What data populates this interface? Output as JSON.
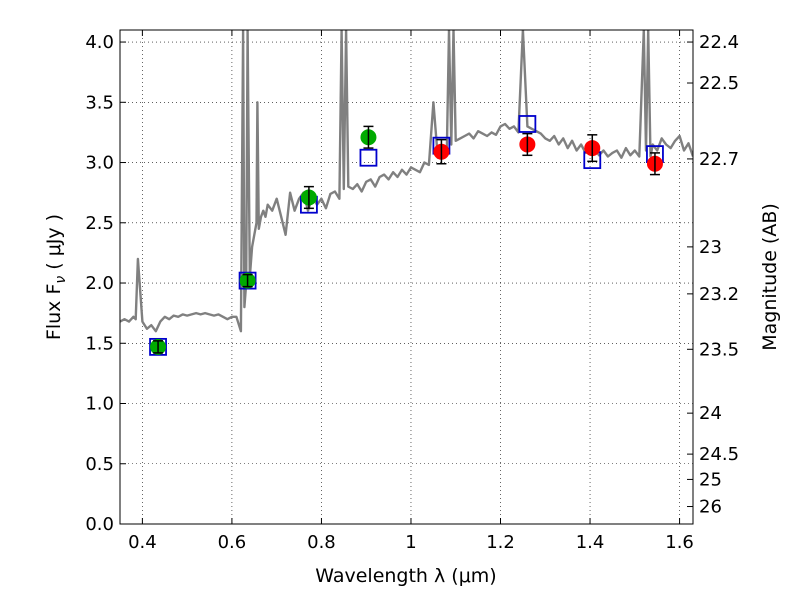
{
  "chart_data": {
    "type": "scatter",
    "xlabel": "Wavelength  λ (μm)",
    "ylabel": "Flux  F",
    "ylabel_sub": "ν",
    "ylabel_units": "  ( μJy )",
    "y2label": "Magnitude (AB)",
    "xlim": [
      0.35,
      1.63
    ],
    "ylim": [
      0.0,
      4.1
    ],
    "grid": true,
    "x_ticks": [
      0.4,
      0.6,
      0.8,
      1.0,
      1.2,
      1.4,
      1.6
    ],
    "x_tick_labels": [
      "0.4",
      "0.6",
      "0.8",
      "1",
      "1.2",
      "1.4",
      "1.6"
    ],
    "y_ticks": [
      0.0,
      0.5,
      1.0,
      1.5,
      2.0,
      2.5,
      3.0,
      3.5,
      4.0
    ],
    "y_tick_labels": [
      "0.0",
      "0.5",
      "1.0",
      "1.5",
      "2.0",
      "2.5",
      "3.0",
      "3.5",
      "4.0"
    ],
    "mag_ticks": [
      {
        "label": "22.4",
        "flux": 4.0
      },
      {
        "label": "22.5",
        "flux": 3.66
      },
      {
        "label": "22.7",
        "flux": 3.03
      },
      {
        "label": "23",
        "flux": 2.3
      },
      {
        "label": "23.2",
        "flux": 1.91
      },
      {
        "label": "23.5",
        "flux": 1.45
      },
      {
        "label": "24",
        "flux": 0.92
      },
      {
        "label": "24.5",
        "flux": 0.58
      },
      {
        "label": "25",
        "flux": 0.37
      },
      {
        "label": "26",
        "flux": 0.145
      }
    ],
    "series": [
      {
        "marker": "line",
        "color": "#808080",
        "x": [
          0.35,
          0.36,
          0.37,
          0.38,
          0.385,
          0.39,
          0.4,
          0.41,
          0.42,
          0.43,
          0.44,
          0.45,
          0.46,
          0.47,
          0.48,
          0.49,
          0.5,
          0.51,
          0.52,
          0.53,
          0.54,
          0.55,
          0.56,
          0.57,
          0.58,
          0.59,
          0.6,
          0.61,
          0.62,
          0.625,
          0.628,
          0.632,
          0.635,
          0.64,
          0.645,
          0.65,
          0.655,
          0.657,
          0.66,
          0.665,
          0.67,
          0.675,
          0.68,
          0.69,
          0.7,
          0.71,
          0.72,
          0.73,
          0.74,
          0.75,
          0.76,
          0.77,
          0.78,
          0.79,
          0.8,
          0.81,
          0.82,
          0.83,
          0.84,
          0.845,
          0.85,
          0.855,
          0.86,
          0.87,
          0.88,
          0.89,
          0.9,
          0.91,
          0.92,
          0.93,
          0.94,
          0.95,
          0.96,
          0.97,
          0.98,
          0.99,
          1.0,
          1.01,
          1.02,
          1.03,
          1.04,
          1.05,
          1.06,
          1.07,
          1.08,
          1.085,
          1.09,
          1.095,
          1.1,
          1.11,
          1.12,
          1.13,
          1.14,
          1.15,
          1.16,
          1.17,
          1.18,
          1.19,
          1.2,
          1.21,
          1.22,
          1.23,
          1.24,
          1.25,
          1.26,
          1.27,
          1.28,
          1.29,
          1.3,
          1.31,
          1.32,
          1.33,
          1.34,
          1.35,
          1.36,
          1.37,
          1.38,
          1.39,
          1.4,
          1.41,
          1.42,
          1.43,
          1.44,
          1.45,
          1.46,
          1.47,
          1.48,
          1.49,
          1.5,
          1.51,
          1.52,
          1.525,
          1.53,
          1.535,
          1.54,
          1.55,
          1.56,
          1.57,
          1.58,
          1.59,
          1.6,
          1.61,
          1.62,
          1.63
        ],
        "y": [
          1.68,
          1.7,
          1.68,
          1.72,
          1.7,
          2.2,
          1.68,
          1.62,
          1.65,
          1.6,
          1.68,
          1.72,
          1.7,
          1.73,
          1.72,
          1.74,
          1.73,
          1.74,
          1.75,
          1.74,
          1.75,
          1.74,
          1.73,
          1.74,
          1.72,
          1.7,
          1.72,
          1.72,
          1.6,
          4.1,
          1.8,
          2.0,
          4.1,
          2.05,
          2.3,
          2.4,
          2.5,
          3.5,
          2.45,
          2.55,
          2.6,
          2.55,
          2.65,
          2.6,
          2.7,
          2.55,
          2.4,
          2.75,
          2.6,
          2.7,
          2.75,
          2.6,
          2.72,
          2.65,
          2.7,
          2.62,
          2.74,
          2.76,
          2.7,
          4.1,
          2.78,
          4.1,
          2.8,
          2.78,
          2.82,
          2.76,
          2.84,
          2.86,
          2.8,
          2.88,
          2.9,
          2.86,
          2.92,
          2.88,
          2.94,
          2.9,
          2.96,
          2.94,
          2.92,
          3.0,
          2.98,
          3.5,
          3.04,
          3.1,
          3.08,
          4.1,
          3.15,
          4.1,
          3.18,
          3.2,
          3.22,
          3.24,
          3.2,
          3.26,
          3.24,
          3.22,
          3.25,
          3.23,
          3.3,
          3.32,
          3.28,
          3.3,
          3.25,
          4.1,
          3.3,
          3.28,
          3.26,
          3.24,
          3.2,
          3.18,
          3.22,
          3.15,
          3.2,
          3.12,
          3.18,
          3.1,
          3.15,
          3.08,
          3.1,
          3.12,
          3.06,
          3.1,
          3.05,
          3.08,
          3.1,
          3.04,
          3.12,
          3.06,
          3.1,
          3.05,
          4.1,
          3.1,
          4.1,
          3.05,
          3.15,
          3.1,
          3.2,
          3.15,
          3.12,
          3.18,
          3.22,
          3.1,
          3.16,
          3.05
        ]
      },
      {
        "marker": "open-square",
        "color": "#0000cc",
        "x": [
          0.435,
          0.635,
          0.772,
          0.905,
          1.068,
          1.26,
          1.405,
          1.545
        ],
        "y": [
          1.47,
          2.02,
          2.65,
          3.04,
          3.14,
          3.32,
          3.02,
          3.07
        ]
      },
      {
        "marker": "filled-circle",
        "color": "#00aa00",
        "x": [
          0.435,
          0.635,
          0.772,
          0.905
        ],
        "y": [
          1.47,
          2.02,
          2.71,
          3.21
        ],
        "yerr": [
          0.05,
          0.05,
          0.09,
          0.09
        ]
      },
      {
        "marker": "filled-circle",
        "color": "#ff0000",
        "x": [
          1.068,
          1.26,
          1.405,
          1.545
        ],
        "y": [
          3.09,
          3.15,
          3.12,
          2.99
        ],
        "yerr": [
          0.1,
          0.09,
          0.11,
          0.09
        ]
      }
    ]
  }
}
